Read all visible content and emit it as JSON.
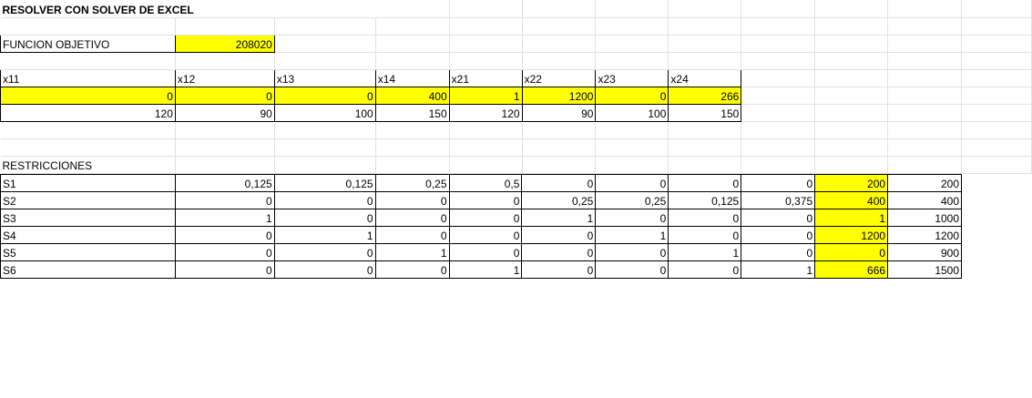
{
  "sheet": {
    "title": "RESOLVER CON SOLVER DE EXCEL",
    "objective_label": "FUNCION OBJETIVO",
    "objective_value": "208020",
    "var_headers": [
      "x11",
      "x12",
      "x13",
      "x14",
      "x21",
      "x22",
      "x23",
      "x24"
    ],
    "var_values": [
      "0",
      "0",
      "0",
      "400",
      "1",
      "1200",
      "0",
      "266"
    ],
    "costs": [
      "120",
      "90",
      "100",
      "150",
      "120",
      "90",
      "100",
      "150"
    ],
    "restrictions_label": "RESTRICCIONES",
    "restrictions": [
      {
        "name": "S1",
        "coefs": [
          "0,125",
          "0,125",
          "0,25",
          "0,5",
          "0",
          "0",
          "0",
          "0"
        ],
        "lhs": "200",
        "rhs": "200"
      },
      {
        "name": "S2",
        "coefs": [
          "0",
          "0",
          "0",
          "0",
          "0,25",
          "0,25",
          "0,125",
          "0,375"
        ],
        "lhs": "400",
        "rhs": "400"
      },
      {
        "name": "S3",
        "coefs": [
          "1",
          "0",
          "0",
          "0",
          "1",
          "0",
          "0",
          "0"
        ],
        "lhs": "1",
        "rhs": "1000"
      },
      {
        "name": "S4",
        "coefs": [
          "0",
          "1",
          "0",
          "0",
          "0",
          "1",
          "0",
          "0"
        ],
        "lhs": "1200",
        "rhs": "1200"
      },
      {
        "name": "S5",
        "coefs": [
          "0",
          "0",
          "1",
          "0",
          "0",
          "0",
          "1",
          "0"
        ],
        "lhs": "0",
        "rhs": "900"
      },
      {
        "name": "S6",
        "coefs": [
          "0",
          "0",
          "0",
          "1",
          "0",
          "0",
          "0",
          "1"
        ],
        "lhs": "666",
        "rhs": "1500"
      }
    ]
  },
  "colors": {
    "highlight": "#ffff00",
    "gridline": "#e1e1e1"
  }
}
